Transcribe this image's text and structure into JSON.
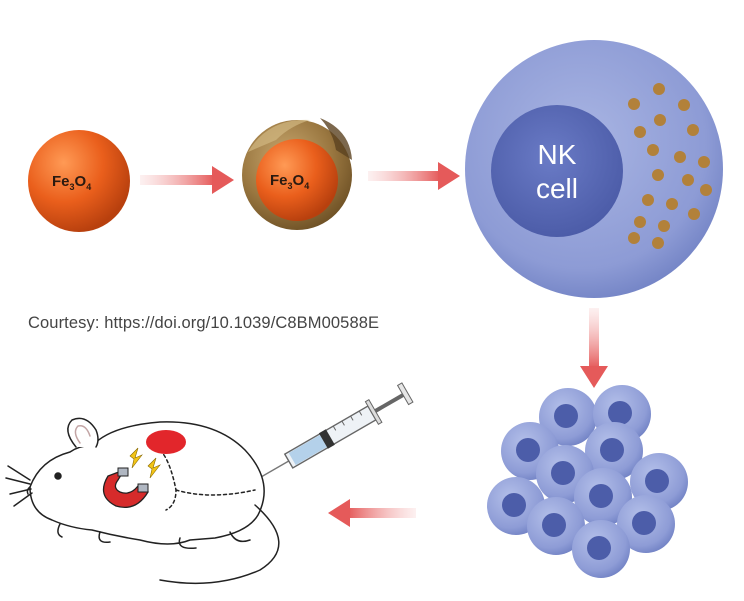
{
  "particle_bare": {
    "label_main": "Fe",
    "label_sub1": "3",
    "label_mid": "O",
    "label_sub2": "4"
  },
  "particle_coated": {
    "label_main": "Fe",
    "label_sub1": "3",
    "label_mid": "O",
    "label_sub2": "4"
  },
  "nk_cell": {
    "line1": "NK",
    "line2": "cell"
  },
  "courtesy": "Courtesy: https://doi.org/10.1039/C8BM00588E",
  "colors": {
    "nanoparticle": "#e8601c",
    "coating": "#8a6a35",
    "cell_body": "#8f9ed6",
    "nucleus": "#5667b0",
    "arrow": "#ea6a6a",
    "tumor": "#e2262b",
    "magnet": "#d62b2b"
  },
  "icons": [
    "arrow-right-icon",
    "arrow-down-icon",
    "arrow-left-icon",
    "syringe-icon",
    "mouse-icon",
    "magnet-icon",
    "lightning-icon"
  ]
}
